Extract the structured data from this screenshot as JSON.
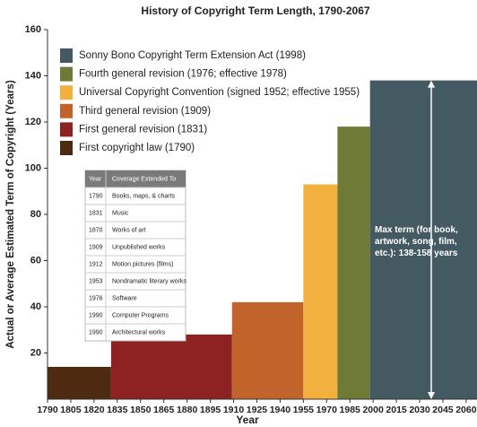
{
  "chart_data": {
    "type": "step",
    "title": "History of Copyright Term Length, 1790-2067",
    "xlabel": "Year",
    "ylabel": "Actual or Average Estimated Term of Copyright (Years)",
    "xlim": [
      1790,
      2067
    ],
    "ylim": [
      0,
      160
    ],
    "xticks": [
      1790,
      1805,
      1820,
      1835,
      1850,
      1865,
      1880,
      1895,
      1910,
      1925,
      1940,
      1955,
      1970,
      1985,
      2000,
      2015,
      2030,
      2045,
      2060
    ],
    "yticks": [
      20,
      40,
      60,
      80,
      100,
      120,
      140,
      160
    ],
    "series": [
      {
        "name": "First copyright law (1790)",
        "color": "#4d2a10",
        "start": 1790,
        "end": 1831,
        "value": 14
      },
      {
        "name": "First general revision (1831)",
        "color": "#8e2222",
        "start": 1831,
        "end": 1909,
        "value": 28
      },
      {
        "name": "Third general revision (1909)",
        "color": "#c1632b",
        "start": 1909,
        "end": 1955,
        "value": 42
      },
      {
        "name": "Universal Copyright Convention (signed 1952; effective 1955)",
        "color": "#f2b13e",
        "start": 1955,
        "end": 1977,
        "value": 93
      },
      {
        "name": "Fourth general revision (1976; effective 1978)",
        "color": "#6f7a36",
        "start": 1977,
        "end": 1998,
        "value": 118
      },
      {
        "name": "Sonny Bono Copyright Term Extension Act (1998)",
        "color": "#445a62",
        "start": 1998,
        "end": 2067,
        "value": 138
      }
    ],
    "annotation": "Max term (for book, artwork, song, film, etc.): 138-158 years",
    "annotation_range": [
      138,
      0
    ]
  },
  "coverage_table": {
    "header": [
      "Year",
      "Coverage Extended To"
    ],
    "rows": [
      [
        "1790",
        "Books, maps, & charts"
      ],
      [
        "1831",
        "Music"
      ],
      [
        "1870",
        "Works of art"
      ],
      [
        "1909",
        "Unpublished works"
      ],
      [
        "1912",
        "Motion pictures (films)"
      ],
      [
        "1953",
        "Nondramatic literary works"
      ],
      [
        "1976",
        "Software"
      ],
      [
        "1990",
        "Computer Programs"
      ],
      [
        "1990",
        "Architectural works"
      ]
    ]
  }
}
